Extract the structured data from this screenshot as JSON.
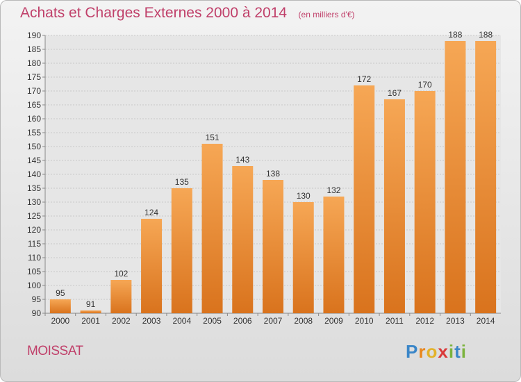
{
  "header": {
    "title": "Achats et Charges Externes 2000 à 2014",
    "unit": "(en milliers d'€)"
  },
  "footer": {
    "city": "MOISSAT",
    "brand_letters": [
      "P",
      "r",
      "o",
      "x",
      "i",
      "t",
      "i"
    ]
  },
  "colors": {
    "bar_light": "#f6a755",
    "bar_dark": "#d9731d",
    "title": "#c0406a",
    "brand": [
      "#3a86c8",
      "#e8871e",
      "#e3b22a",
      "#d93a3a",
      "#7bb33d",
      "#3a86c8",
      "#7bb33d"
    ]
  },
  "chart_data": {
    "type": "bar",
    "title": "Achats et Charges Externes 2000 à 2014",
    "xlabel": "",
    "ylabel": "",
    "categories": [
      "2000",
      "2001",
      "2002",
      "2003",
      "2004",
      "2005",
      "2006",
      "2007",
      "2008",
      "2009",
      "2010",
      "2011",
      "2012",
      "2013",
      "2014"
    ],
    "values": [
      95,
      91,
      102,
      124,
      135,
      151,
      143,
      138,
      130,
      132,
      172,
      167,
      170,
      188,
      188
    ],
    "ylim": [
      90,
      190
    ],
    "ytick_step": 5,
    "grid": true,
    "data_labels": true
  }
}
